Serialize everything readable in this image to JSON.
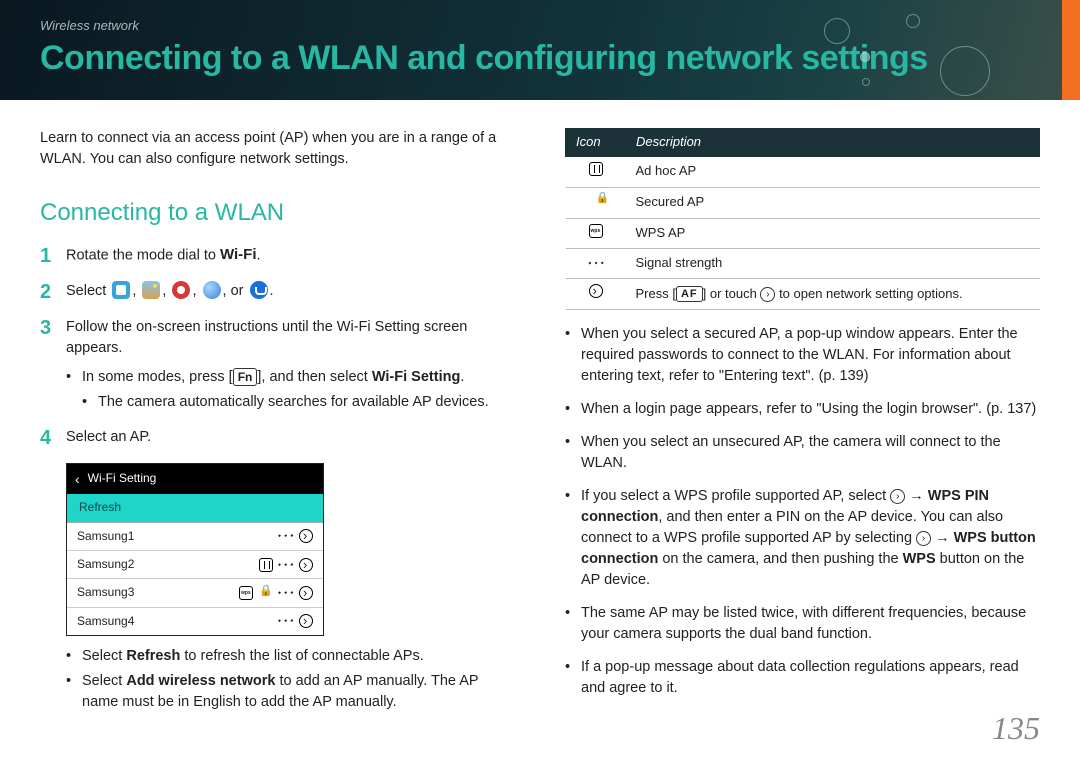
{
  "header": {
    "breadcrumb": "Wireless network",
    "title": "Connecting to a WLAN and configuring network settings",
    "accent_color": "#f36f21",
    "title_color": "#27b7a3",
    "bg_gradient": [
      "#0a1820",
      "#12323a",
      "#1a4044",
      "#3a5048"
    ]
  },
  "left": {
    "intro": "Learn to connect via an access point (AP) when you are in a range of a WLAN. You can also configure network settings.",
    "section_title": "Connecting to a WLAN",
    "steps": {
      "1": {
        "num": "1",
        "text_a": "Rotate the mode dial to ",
        "wifi_label": "Wi-Fi",
        "text_b": "."
      },
      "2": {
        "num": "2",
        "text_a": "Select ",
        "sep": ", ",
        "or": ", or ",
        "end": "."
      },
      "3": {
        "num": "3",
        "text": "Follow the on-screen instructions until the Wi-Fi Setting screen appears.",
        "sub1_a": "In some modes, press [",
        "sub1_fn": "Fn",
        "sub1_b": "], and then select ",
        "sub1_bold": "Wi-Fi Setting",
        "sub1_c": ".",
        "sub2": "The camera automatically searches for available AP devices."
      },
      "4": {
        "num": "4",
        "text": "Select an AP.",
        "mock": {
          "title": "Wi-Fi Setting",
          "refresh": "Refresh",
          "rows": [
            {
              "name": "Samsung1",
              "icons": [
                "signal",
                "arrow"
              ]
            },
            {
              "name": "Samsung2",
              "icons": [
                "adhoc",
                "signal",
                "arrow"
              ]
            },
            {
              "name": "Samsung3",
              "icons": [
                "wps",
                "lock",
                "signal",
                "arrow"
              ]
            },
            {
              "name": "Samsung4",
              "icons": [
                "signal",
                "arrow"
              ]
            }
          ],
          "refresh_bg": "#1fd4c8"
        },
        "after1_a": "Select ",
        "after1_bold": "Refresh",
        "after1_b": " to refresh the list of connectable APs.",
        "after2_a": "Select ",
        "after2_bold": "Add wireless network",
        "after2_b": " to add an AP manually. The AP name must be in English to add the AP manually."
      }
    }
  },
  "right": {
    "table": {
      "headers": {
        "icon": "Icon",
        "desc": "Description"
      },
      "rows": [
        {
          "icon": "adhoc",
          "desc": "Ad hoc AP"
        },
        {
          "icon": "lock",
          "desc": "Secured AP"
        },
        {
          "icon": "wps",
          "desc": "WPS AP"
        },
        {
          "icon": "signal",
          "desc": "Signal strength"
        },
        {
          "icon": "arrow",
          "desc_a": "Press [",
          "af": "AF",
          "desc_b": "] or touch ",
          "desc_c": " to open network setting options."
        }
      ]
    },
    "bullets": {
      "0": "When you select a secured AP, a pop-up window appears. Enter the required passwords to connect to the WLAN. For information about entering text, refer to \"Entering text\". (p. 139)",
      "1": "When a login page appears, refer to \"Using the login browser\". (p. 137)",
      "2": "When you select an unsecured AP, the camera will connect to the WLAN.",
      "3_a": "If you select a WPS profile supported AP, select ",
      "3_b": " → ",
      "3_bold1": "WPS PIN connection",
      "3_c": ", and then enter a PIN on the AP device. You can also connect to a WPS profile supported AP by selecting ",
      "3_d": " → ",
      "3_bold2": "WPS button connection",
      "3_e": " on the camera, and then pushing the ",
      "3_bold3": "WPS",
      "3_f": " button on the AP device.",
      "4": "The same AP may be listed twice, with different frequencies, because your camera supports the dual band function.",
      "5": "If a pop-up message about data collection regulations appears, read and agree to it."
    }
  },
  "page_number": "135",
  "colors": {
    "teal": "#27b7a3",
    "table_header_bg": "#1a3238",
    "page_num": "#888888"
  }
}
